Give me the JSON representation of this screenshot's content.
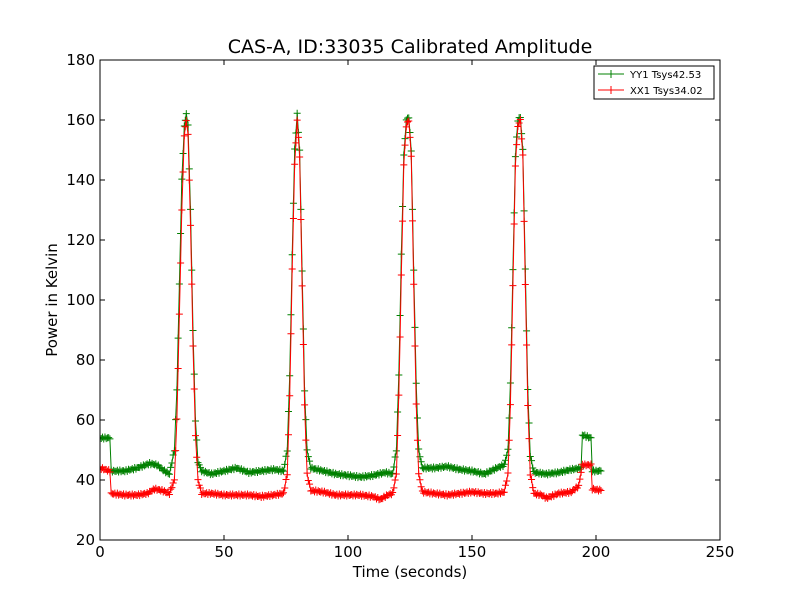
{
  "chart_data": {
    "type": "line",
    "title": "CAS-A, ID:33035 Calibrated Amplitude",
    "xlabel": "Time (seconds)",
    "ylabel": "Power in Kelvin",
    "xlim": [
      0,
      250
    ],
    "ylim": [
      20,
      180
    ],
    "xticks": [
      "0",
      "50",
      "100",
      "150",
      "200",
      "250"
    ],
    "yticks": [
      "20",
      "40",
      "60",
      "80",
      "100",
      "120",
      "140",
      "160",
      "180"
    ],
    "grid": false,
    "legend_position": "top-right",
    "marker": "+",
    "series": [
      {
        "name": "YY1 Tsys42.53",
        "color": "#008000",
        "points": [
          [
            0,
            54
          ],
          [
            4,
            54
          ],
          [
            4.5,
            43
          ],
          [
            10,
            43
          ],
          [
            15,
            44
          ],
          [
            20,
            45.5
          ],
          [
            23,
            45
          ],
          [
            26,
            43
          ],
          [
            28,
            42
          ],
          [
            30,
            50
          ],
          [
            31,
            70
          ],
          [
            32,
            105
          ],
          [
            33,
            140
          ],
          [
            34,
            158
          ],
          [
            34.8,
            162
          ],
          [
            35.5,
            158
          ],
          [
            36.5,
            130
          ],
          [
            37.5,
            90
          ],
          [
            38.5,
            60
          ],
          [
            39.5,
            46
          ],
          [
            41,
            43
          ],
          [
            45,
            42
          ],
          [
            50,
            43
          ],
          [
            55,
            44
          ],
          [
            60,
            42.5
          ],
          [
            65,
            43
          ],
          [
            70,
            43.5
          ],
          [
            74,
            43
          ],
          [
            75.5,
            50
          ],
          [
            76.5,
            75
          ],
          [
            77.5,
            115
          ],
          [
            78.5,
            150
          ],
          [
            79.5,
            162
          ],
          [
            80.5,
            150
          ],
          [
            81.5,
            110
          ],
          [
            82.5,
            70
          ],
          [
            83.5,
            50
          ],
          [
            85,
            44
          ],
          [
            90,
            43
          ],
          [
            95,
            42
          ],
          [
            100,
            41.5
          ],
          [
            105,
            41
          ],
          [
            110,
            41.5
          ],
          [
            115,
            42.5
          ],
          [
            118,
            42
          ],
          [
            119.5,
            50
          ],
          [
            120.5,
            75
          ],
          [
            121.5,
            115
          ],
          [
            122.5,
            148
          ],
          [
            123.5,
            160
          ],
          [
            124.5,
            161
          ],
          [
            125.5,
            150
          ],
          [
            126.5,
            110
          ],
          [
            127.5,
            72
          ],
          [
            128.5,
            50
          ],
          [
            130,
            44
          ],
          [
            135,
            44
          ],
          [
            140,
            44.5
          ],
          [
            145,
            43.5
          ],
          [
            150,
            43
          ],
          [
            155,
            42
          ],
          [
            160,
            44
          ],
          [
            163,
            45
          ],
          [
            164.5,
            50
          ],
          [
            165.5,
            72
          ],
          [
            166.5,
            110
          ],
          [
            167.5,
            148
          ],
          [
            168.5,
            160
          ],
          [
            169.5,
            161
          ],
          [
            170.5,
            150
          ],
          [
            171.5,
            110
          ],
          [
            172.5,
            70
          ],
          [
            173.5,
            48
          ],
          [
            175,
            42.5
          ],
          [
            180,
            42
          ],
          [
            185,
            42.5
          ],
          [
            190,
            43.5
          ],
          [
            194,
            44
          ],
          [
            194.5,
            55
          ],
          [
            198,
            54
          ],
          [
            198.5,
            43
          ],
          [
            202,
            43
          ]
        ]
      },
      {
        "name": "XX1 Tsys34.02",
        "color": "#ff0000",
        "points": [
          [
            0,
            44
          ],
          [
            4,
            43
          ],
          [
            4.5,
            35.5
          ],
          [
            10,
            35
          ],
          [
            15,
            35
          ],
          [
            19,
            35.5
          ],
          [
            22,
            37
          ],
          [
            25,
            36.5
          ],
          [
            28,
            35.5
          ],
          [
            30,
            40
          ],
          [
            31,
            60
          ],
          [
            32,
            95
          ],
          [
            33,
            130
          ],
          [
            34,
            155
          ],
          [
            34.8,
            160
          ],
          [
            35.5,
            155
          ],
          [
            36.5,
            125
          ],
          [
            37.5,
            85
          ],
          [
            38.5,
            55
          ],
          [
            39.5,
            40
          ],
          [
            41,
            35.5
          ],
          [
            45,
            35.5
          ],
          [
            50,
            35
          ],
          [
            55,
            35
          ],
          [
            60,
            35
          ],
          [
            65,
            34.5
          ],
          [
            70,
            35
          ],
          [
            74,
            35.5
          ],
          [
            75.5,
            42
          ],
          [
            76.5,
            68
          ],
          [
            77.5,
            110
          ],
          [
            78.5,
            145
          ],
          [
            79.5,
            160
          ],
          [
            80.5,
            148
          ],
          [
            81.5,
            105
          ],
          [
            82.5,
            65
          ],
          [
            83.5,
            42
          ],
          [
            85,
            36.5
          ],
          [
            90,
            36
          ],
          [
            95,
            35
          ],
          [
            100,
            35
          ],
          [
            105,
            35
          ],
          [
            110,
            34.5
          ],
          [
            113,
            33.5
          ],
          [
            116,
            35
          ],
          [
            118,
            35.5
          ],
          [
            119.5,
            42
          ],
          [
            120.5,
            68
          ],
          [
            121.5,
            108
          ],
          [
            122.5,
            145
          ],
          [
            123.5,
            158
          ],
          [
            124.5,
            160
          ],
          [
            125.5,
            148
          ],
          [
            126.5,
            105
          ],
          [
            127.5,
            65
          ],
          [
            128.5,
            42
          ],
          [
            130,
            36
          ],
          [
            135,
            35.5
          ],
          [
            140,
            35
          ],
          [
            145,
            35.5
          ],
          [
            150,
            36
          ],
          [
            155,
            35.5
          ],
          [
            160,
            35.5
          ],
          [
            163,
            36
          ],
          [
            164.5,
            42
          ],
          [
            165.5,
            65
          ],
          [
            166.5,
            105
          ],
          [
            167.5,
            145
          ],
          [
            168.5,
            158
          ],
          [
            169.5,
            160
          ],
          [
            170.5,
            148
          ],
          [
            171.5,
            105
          ],
          [
            172.5,
            65
          ],
          [
            173.5,
            42
          ],
          [
            175,
            35.5
          ],
          [
            178,
            35
          ],
          [
            180,
            34
          ],
          [
            185,
            35.5
          ],
          [
            190,
            36
          ],
          [
            193,
            38
          ],
          [
            194.5,
            45
          ],
          [
            198,
            45
          ],
          [
            198.5,
            37
          ],
          [
            202,
            36.5
          ]
        ]
      }
    ]
  }
}
